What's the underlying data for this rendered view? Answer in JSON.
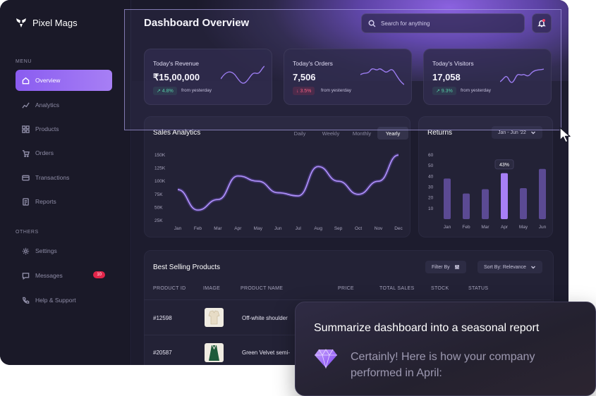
{
  "brand": {
    "name": "Pixel Mags"
  },
  "sidebar": {
    "menu_label": "MENU",
    "others_label": "OTHERS",
    "items": [
      {
        "label": "Overview",
        "icon": "home-icon"
      },
      {
        "label": "Analytics",
        "icon": "analytics-icon"
      },
      {
        "label": "Products",
        "icon": "grid-icon"
      },
      {
        "label": "Orders",
        "icon": "cart-icon"
      },
      {
        "label": "Transactions",
        "icon": "card-icon"
      },
      {
        "label": "Reports",
        "icon": "report-icon"
      }
    ],
    "other_items": [
      {
        "label": "Settings",
        "icon": "gear-icon"
      },
      {
        "label": "Messages",
        "icon": "message-icon",
        "badge": "10"
      },
      {
        "label": "Help & Support",
        "icon": "phone-icon"
      }
    ]
  },
  "header": {
    "title": "Dashboard Overview",
    "search_placeholder": "Search for anything"
  },
  "stats": [
    {
      "label": "Today's Revenue",
      "value": "₹15,00,000",
      "change": "↗ 4.8%",
      "direction": "up",
      "sub": "from yesterday"
    },
    {
      "label": "Today's Orders",
      "value": "7,506",
      "change": "↓ 3.5%",
      "direction": "down",
      "sub": "from yesterday"
    },
    {
      "label": "Today's Visitors",
      "value": "17,058",
      "change": "↗ 9.3%",
      "direction": "up",
      "sub": "from yesterday"
    }
  ],
  "sales": {
    "title": "Sales Analytics",
    "tabs": [
      "Daily",
      "Weekly",
      "Monthly",
      "Yearly"
    ],
    "active_tab": "Yearly"
  },
  "returns": {
    "title": "Returns",
    "range": "Jan - Jun '22",
    "tooltip": "43%"
  },
  "chart_data": [
    {
      "type": "line",
      "x": [
        "Jan",
        "Feb",
        "Mar",
        "Apr",
        "May",
        "Jun",
        "Jul",
        "Aug",
        "Sep",
        "Oct",
        "Nov",
        "Dec"
      ],
      "yticks": [
        "150K",
        "125K",
        "100K",
        "75K",
        "50K",
        "25K"
      ],
      "ylim": [
        25000,
        150000
      ],
      "values": [
        84000,
        45000,
        65000,
        110000,
        100000,
        78000,
        72000,
        128000,
        100000,
        75000,
        100000,
        150000
      ],
      "grid": false
    },
    {
      "type": "bar",
      "categories": [
        "Jan",
        "Feb",
        "Mar",
        "Apr",
        "May",
        "Jun"
      ],
      "yticks": [
        "60",
        "50",
        "40",
        "30",
        "20",
        "10"
      ],
      "ylim": [
        0,
        60
      ],
      "values": [
        38,
        24,
        28,
        43,
        29,
        47
      ],
      "highlight": "Apr"
    }
  ],
  "products": {
    "title": "Best Selling Products",
    "filter_label": "Filter By",
    "sort_label": "Sort By: Relevance",
    "columns": [
      "PRODUCT ID",
      "IMAGE",
      "PRODUCT NAME",
      "PRICE",
      "TOTAL SALES",
      "STOCK",
      "STATUS"
    ],
    "rows": [
      {
        "id": "#12598",
        "name": "Off-white shoulder"
      },
      {
        "id": "#20587",
        "name": "Green Velvet semi-"
      }
    ]
  },
  "chat": {
    "prompt": "Summarize dashboard into a seasonal report",
    "reply": "Certainly! Here is how your company performed in April:"
  },
  "colors": {
    "accent": "#8a5cf0",
    "up": "#4fd1a1",
    "down": "#ff5c7a",
    "badge": "#e2254a"
  }
}
